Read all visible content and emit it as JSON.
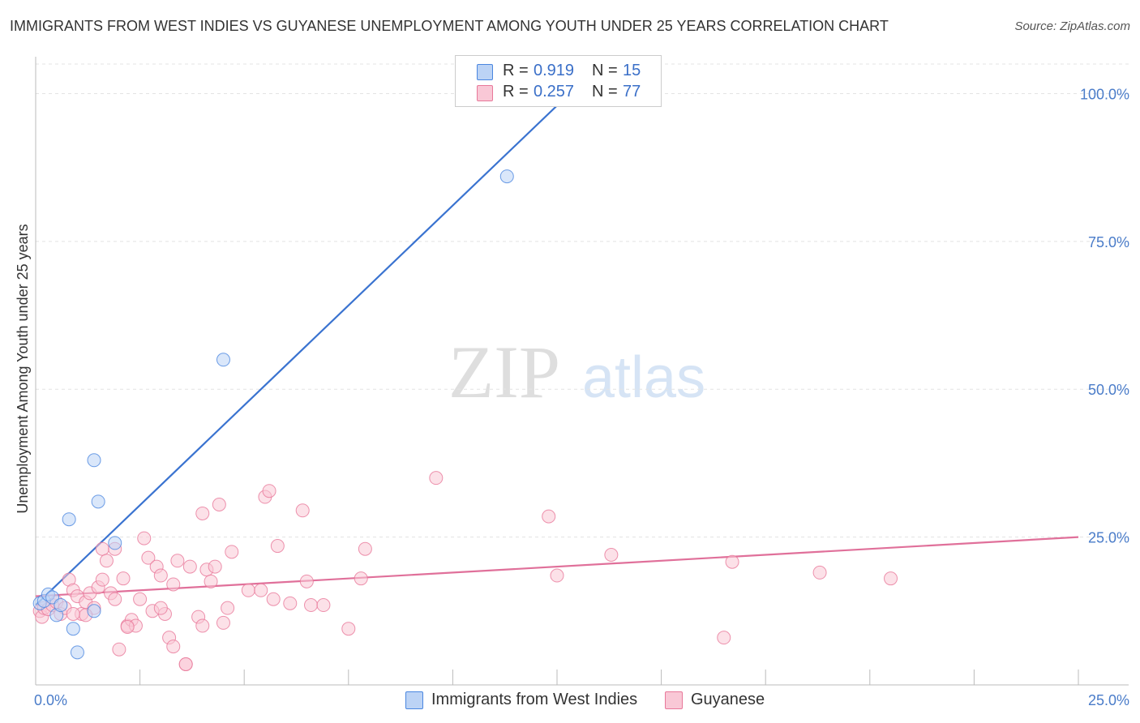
{
  "title": "IMMIGRANTS FROM WEST INDIES VS GUYANESE UNEMPLOYMENT AMONG YOUTH UNDER 25 YEARS CORRELATION CHART",
  "source": "Source: ZipAtlas.com",
  "watermark": {
    "zip": "ZIP",
    "atlas": "atlas"
  },
  "legend_top": {
    "rows": [
      {
        "r_label": "R =",
        "r_value": "0.919",
        "n_label": "N =",
        "n_value": "15",
        "color": "#a9c6f0"
      },
      {
        "r_label": "R =",
        "r_value": "0.257",
        "n_label": "N =",
        "n_value": "77",
        "color": "#f7b8cb"
      }
    ]
  },
  "legend_bottom": {
    "items": [
      {
        "label": "Immigrants from West Indies",
        "color": "#a9c6f0"
      },
      {
        "label": "Guyanese",
        "color": "#f7b8cb"
      }
    ]
  },
  "chart_data": {
    "type": "scatter",
    "xlabel": "",
    "ylabel": "Unemployment Among Youth under 25 years",
    "xlim": [
      0,
      25
    ],
    "ylim": [
      0,
      105
    ],
    "x_tick_labels": {
      "left": "0.0%",
      "right": "25.0%"
    },
    "y_ticks": [
      {
        "value": 25,
        "label": "25.0%"
      },
      {
        "value": 50,
        "label": "50.0%"
      },
      {
        "value": 75,
        "label": "75.0%"
      },
      {
        "value": 100,
        "label": "100.0%"
      }
    ],
    "series": [
      {
        "name": "Immigrants from West Indies",
        "color": "#4a86e0",
        "fill": "#bcd3f5",
        "trend": {
          "x0": 0,
          "y0": 13.5,
          "x1": 12.8,
          "y1": 100,
          "color": "#3a73d0"
        },
        "points": [
          [
            0.1,
            13.8
          ],
          [
            0.2,
            14.2
          ],
          [
            0.3,
            15.3
          ],
          [
            0.4,
            14.8
          ],
          [
            0.5,
            11.8
          ],
          [
            0.6,
            13.5
          ],
          [
            0.8,
            28.0
          ],
          [
            0.9,
            9.5
          ],
          [
            1.0,
            5.5
          ],
          [
            1.4,
            12.5
          ],
          [
            1.4,
            38.0
          ],
          [
            1.5,
            31.0
          ],
          [
            1.9,
            24.0
          ],
          [
            4.5,
            55.0
          ],
          [
            11.3,
            86.0
          ]
        ]
      },
      {
        "name": "Guyanese",
        "color": "#e8789a",
        "fill": "#f9c8d6",
        "trend": {
          "x0": 0,
          "y0": 15.0,
          "x1": 25,
          "y1": 25.0,
          "color": "#e0709a"
        },
        "points": [
          [
            0.1,
            12.5
          ],
          [
            0.15,
            11.5
          ],
          [
            0.2,
            13.0
          ],
          [
            0.3,
            12.8
          ],
          [
            0.4,
            13.5
          ],
          [
            0.5,
            14.0
          ],
          [
            0.6,
            12.0
          ],
          [
            0.7,
            13.0
          ],
          [
            0.8,
            17.8
          ],
          [
            0.9,
            16.0
          ],
          [
            1.0,
            15.0
          ],
          [
            1.1,
            12.0
          ],
          [
            1.2,
            14.0
          ],
          [
            1.3,
            15.5
          ],
          [
            1.4,
            13.0
          ],
          [
            1.5,
            16.5
          ],
          [
            1.6,
            17.8
          ],
          [
            1.6,
            23.0
          ],
          [
            1.7,
            21.0
          ],
          [
            1.8,
            15.5
          ],
          [
            1.9,
            14.5
          ],
          [
            1.9,
            23.0
          ],
          [
            2.0,
            6.0
          ],
          [
            2.1,
            18.0
          ],
          [
            2.2,
            10.0
          ],
          [
            2.3,
            11.0
          ],
          [
            2.4,
            10.0
          ],
          [
            2.5,
            14.5
          ],
          [
            2.6,
            24.8
          ],
          [
            2.7,
            21.5
          ],
          [
            2.8,
            12.5
          ],
          [
            2.9,
            20.0
          ],
          [
            3.0,
            18.5
          ],
          [
            3.1,
            12.0
          ],
          [
            3.2,
            8.0
          ],
          [
            3.3,
            17.0
          ],
          [
            3.3,
            6.5
          ],
          [
            3.4,
            21.0
          ],
          [
            3.6,
            3.5
          ],
          [
            3.7,
            20.0
          ],
          [
            3.9,
            11.5
          ],
          [
            4.0,
            10.0
          ],
          [
            4.0,
            29.0
          ],
          [
            4.1,
            19.5
          ],
          [
            4.2,
            17.5
          ],
          [
            4.3,
            20.0
          ],
          [
            4.4,
            30.5
          ],
          [
            4.5,
            10.5
          ],
          [
            4.6,
            13.0
          ],
          [
            4.7,
            22.5
          ],
          [
            5.1,
            16.0
          ],
          [
            5.4,
            16.0
          ],
          [
            5.5,
            31.8
          ],
          [
            5.6,
            32.8
          ],
          [
            5.7,
            14.5
          ],
          [
            5.8,
            23.5
          ],
          [
            6.1,
            13.8
          ],
          [
            6.4,
            29.5
          ],
          [
            6.5,
            17.5
          ],
          [
            6.6,
            13.5
          ],
          [
            6.9,
            13.5
          ],
          [
            7.5,
            9.5
          ],
          [
            7.8,
            18.0
          ],
          [
            7.9,
            23.0
          ],
          [
            9.6,
            35.0
          ],
          [
            12.3,
            28.5
          ],
          [
            12.5,
            18.5
          ],
          [
            13.8,
            22.0
          ],
          [
            16.5,
            8.0
          ],
          [
            16.7,
            20.8
          ],
          [
            18.8,
            19.0
          ],
          [
            20.5,
            18.0
          ],
          [
            3.6,
            3.5
          ],
          [
            1.2,
            11.8
          ],
          [
            0.9,
            12.0
          ],
          [
            2.2,
            9.8
          ],
          [
            3.0,
            13.0
          ]
        ]
      }
    ]
  }
}
